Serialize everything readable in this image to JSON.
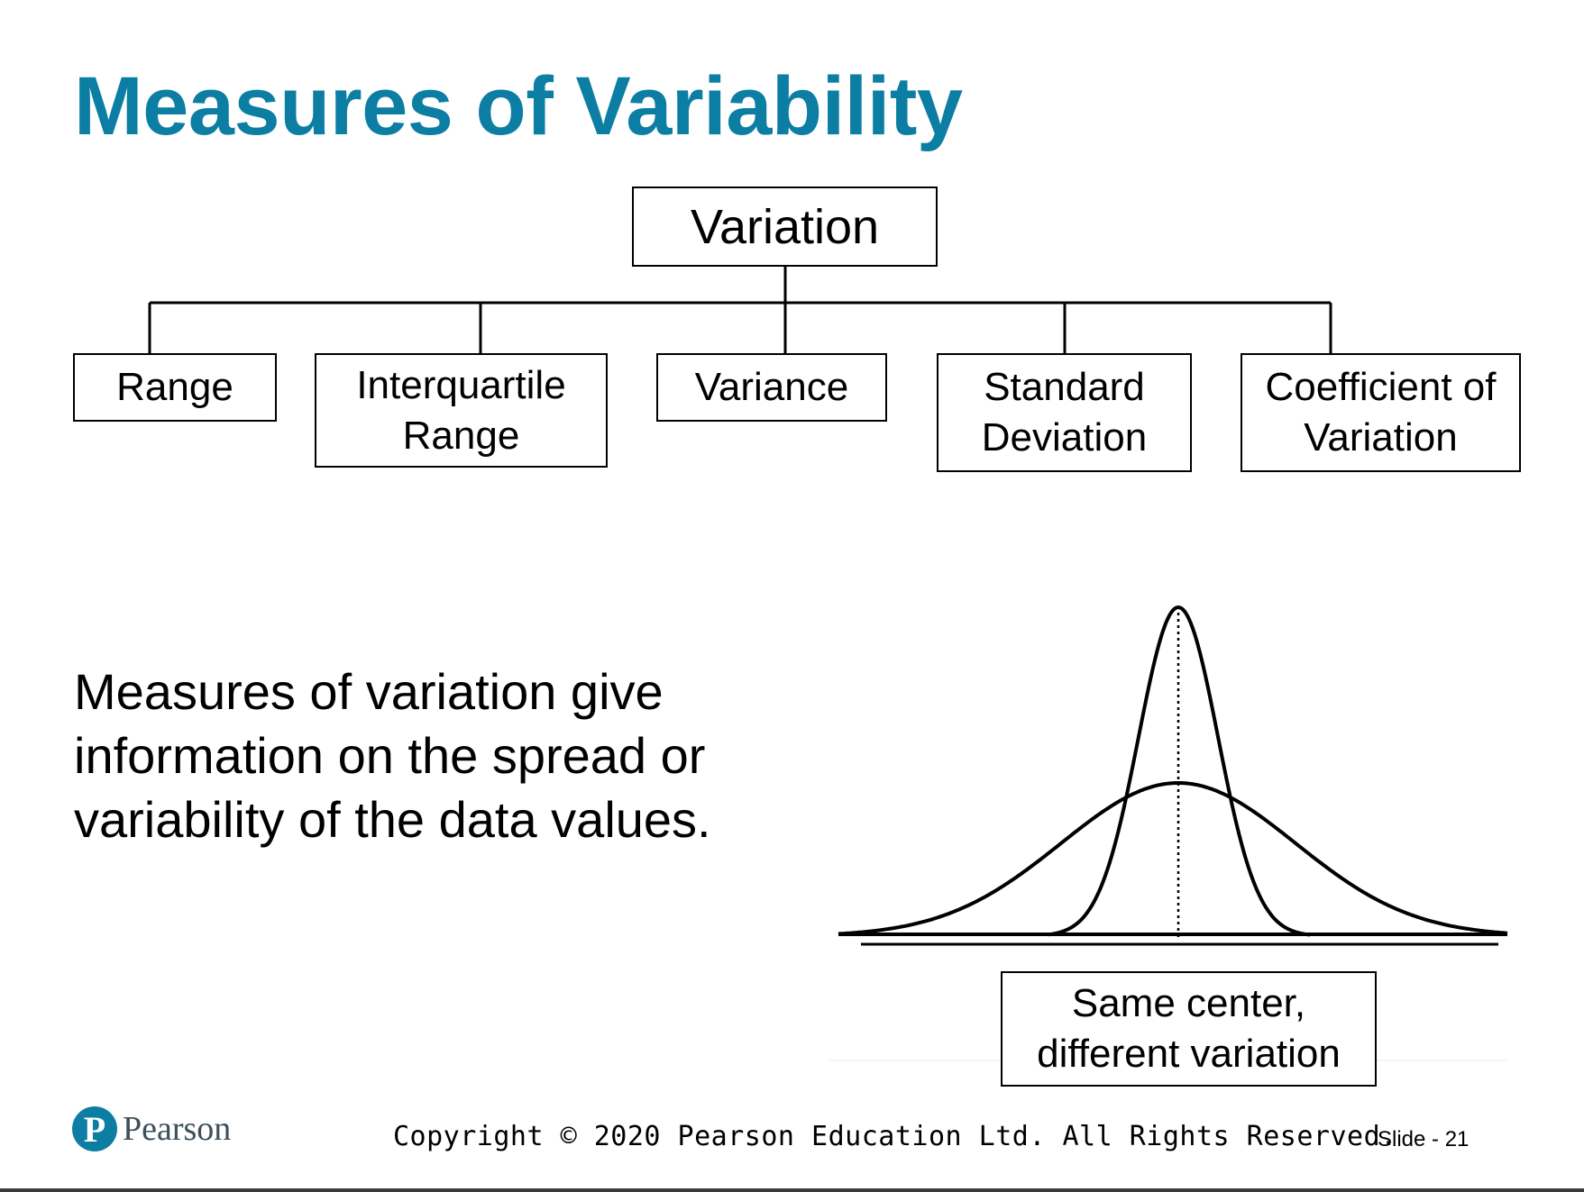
{
  "slide": {
    "title": "Measures of Variability",
    "body_text": "Measures of variation give information on the spread or variability of the data values.",
    "accent_color": "#0d7ea3"
  },
  "diagram": {
    "root": "Variation",
    "children": [
      {
        "lines": [
          "Range"
        ]
      },
      {
        "lines": [
          "Interquartile",
          "Range"
        ]
      },
      {
        "lines": [
          "Variance"
        ]
      },
      {
        "lines": [
          "Standard",
          "Deviation"
        ]
      },
      {
        "lines": [
          "Coefficient of",
          "Variation"
        ]
      }
    ]
  },
  "illustration": {
    "caption_lines": [
      "Same center,",
      "different variation"
    ],
    "curves": [
      "narrow-bell-curve",
      "wide-bell-curve"
    ]
  },
  "footer": {
    "logo_text": "Pearson",
    "logo_icon": "pearson-p-icon",
    "copyright": "Copyright © 2020 Pearson Education Ltd. All Rights Reserved.",
    "slide_label": "Slide - 21"
  }
}
